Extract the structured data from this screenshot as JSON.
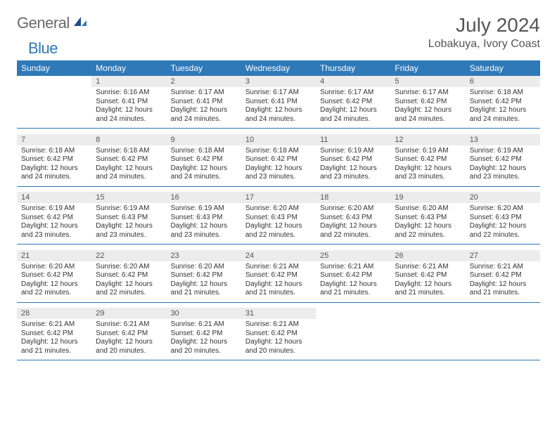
{
  "brand": {
    "part1": "General",
    "part2": "Blue"
  },
  "title": "July 2024",
  "location": "Lobakuya, Ivory Coast",
  "colors": {
    "accent": "#2f79b9",
    "header_text": "#ffffff",
    "daynum_bg": "#ececec",
    "text": "#333333",
    "title": "#555555"
  },
  "weekdays": [
    "Sunday",
    "Monday",
    "Tuesday",
    "Wednesday",
    "Thursday",
    "Friday",
    "Saturday"
  ],
  "weeks": [
    [
      null,
      {
        "n": "1",
        "sr": "Sunrise: 6:16 AM",
        "ss": "Sunset: 6:41 PM",
        "d1": "Daylight: 12 hours",
        "d2": "and 24 minutes."
      },
      {
        "n": "2",
        "sr": "Sunrise: 6:17 AM",
        "ss": "Sunset: 6:41 PM",
        "d1": "Daylight: 12 hours",
        "d2": "and 24 minutes."
      },
      {
        "n": "3",
        "sr": "Sunrise: 6:17 AM",
        "ss": "Sunset: 6:41 PM",
        "d1": "Daylight: 12 hours",
        "d2": "and 24 minutes."
      },
      {
        "n": "4",
        "sr": "Sunrise: 6:17 AM",
        "ss": "Sunset: 6:42 PM",
        "d1": "Daylight: 12 hours",
        "d2": "and 24 minutes."
      },
      {
        "n": "5",
        "sr": "Sunrise: 6:17 AM",
        "ss": "Sunset: 6:42 PM",
        "d1": "Daylight: 12 hours",
        "d2": "and 24 minutes."
      },
      {
        "n": "6",
        "sr": "Sunrise: 6:18 AM",
        "ss": "Sunset: 6:42 PM",
        "d1": "Daylight: 12 hours",
        "d2": "and 24 minutes."
      }
    ],
    [
      {
        "n": "7",
        "sr": "Sunrise: 6:18 AM",
        "ss": "Sunset: 6:42 PM",
        "d1": "Daylight: 12 hours",
        "d2": "and 24 minutes."
      },
      {
        "n": "8",
        "sr": "Sunrise: 6:18 AM",
        "ss": "Sunset: 6:42 PM",
        "d1": "Daylight: 12 hours",
        "d2": "and 24 minutes."
      },
      {
        "n": "9",
        "sr": "Sunrise: 6:18 AM",
        "ss": "Sunset: 6:42 PM",
        "d1": "Daylight: 12 hours",
        "d2": "and 24 minutes."
      },
      {
        "n": "10",
        "sr": "Sunrise: 6:18 AM",
        "ss": "Sunset: 6:42 PM",
        "d1": "Daylight: 12 hours",
        "d2": "and 23 minutes."
      },
      {
        "n": "11",
        "sr": "Sunrise: 6:19 AM",
        "ss": "Sunset: 6:42 PM",
        "d1": "Daylight: 12 hours",
        "d2": "and 23 minutes."
      },
      {
        "n": "12",
        "sr": "Sunrise: 6:19 AM",
        "ss": "Sunset: 6:42 PM",
        "d1": "Daylight: 12 hours",
        "d2": "and 23 minutes."
      },
      {
        "n": "13",
        "sr": "Sunrise: 6:19 AM",
        "ss": "Sunset: 6:42 PM",
        "d1": "Daylight: 12 hours",
        "d2": "and 23 minutes."
      }
    ],
    [
      {
        "n": "14",
        "sr": "Sunrise: 6:19 AM",
        "ss": "Sunset: 6:42 PM",
        "d1": "Daylight: 12 hours",
        "d2": "and 23 minutes."
      },
      {
        "n": "15",
        "sr": "Sunrise: 6:19 AM",
        "ss": "Sunset: 6:43 PM",
        "d1": "Daylight: 12 hours",
        "d2": "and 23 minutes."
      },
      {
        "n": "16",
        "sr": "Sunrise: 6:19 AM",
        "ss": "Sunset: 6:43 PM",
        "d1": "Daylight: 12 hours",
        "d2": "and 23 minutes."
      },
      {
        "n": "17",
        "sr": "Sunrise: 6:20 AM",
        "ss": "Sunset: 6:43 PM",
        "d1": "Daylight: 12 hours",
        "d2": "and 22 minutes."
      },
      {
        "n": "18",
        "sr": "Sunrise: 6:20 AM",
        "ss": "Sunset: 6:43 PM",
        "d1": "Daylight: 12 hours",
        "d2": "and 22 minutes."
      },
      {
        "n": "19",
        "sr": "Sunrise: 6:20 AM",
        "ss": "Sunset: 6:43 PM",
        "d1": "Daylight: 12 hours",
        "d2": "and 22 minutes."
      },
      {
        "n": "20",
        "sr": "Sunrise: 6:20 AM",
        "ss": "Sunset: 6:43 PM",
        "d1": "Daylight: 12 hours",
        "d2": "and 22 minutes."
      }
    ],
    [
      {
        "n": "21",
        "sr": "Sunrise: 6:20 AM",
        "ss": "Sunset: 6:42 PM",
        "d1": "Daylight: 12 hours",
        "d2": "and 22 minutes."
      },
      {
        "n": "22",
        "sr": "Sunrise: 6:20 AM",
        "ss": "Sunset: 6:42 PM",
        "d1": "Daylight: 12 hours",
        "d2": "and 22 minutes."
      },
      {
        "n": "23",
        "sr": "Sunrise: 6:20 AM",
        "ss": "Sunset: 6:42 PM",
        "d1": "Daylight: 12 hours",
        "d2": "and 21 minutes."
      },
      {
        "n": "24",
        "sr": "Sunrise: 6:21 AM",
        "ss": "Sunset: 6:42 PM",
        "d1": "Daylight: 12 hours",
        "d2": "and 21 minutes."
      },
      {
        "n": "25",
        "sr": "Sunrise: 6:21 AM",
        "ss": "Sunset: 6:42 PM",
        "d1": "Daylight: 12 hours",
        "d2": "and 21 minutes."
      },
      {
        "n": "26",
        "sr": "Sunrise: 6:21 AM",
        "ss": "Sunset: 6:42 PM",
        "d1": "Daylight: 12 hours",
        "d2": "and 21 minutes."
      },
      {
        "n": "27",
        "sr": "Sunrise: 6:21 AM",
        "ss": "Sunset: 6:42 PM",
        "d1": "Daylight: 12 hours",
        "d2": "and 21 minutes."
      }
    ],
    [
      {
        "n": "28",
        "sr": "Sunrise: 6:21 AM",
        "ss": "Sunset: 6:42 PM",
        "d1": "Daylight: 12 hours",
        "d2": "and 21 minutes."
      },
      {
        "n": "29",
        "sr": "Sunrise: 6:21 AM",
        "ss": "Sunset: 6:42 PM",
        "d1": "Daylight: 12 hours",
        "d2": "and 20 minutes."
      },
      {
        "n": "30",
        "sr": "Sunrise: 6:21 AM",
        "ss": "Sunset: 6:42 PM",
        "d1": "Daylight: 12 hours",
        "d2": "and 20 minutes."
      },
      {
        "n": "31",
        "sr": "Sunrise: 6:21 AM",
        "ss": "Sunset: 6:42 PM",
        "d1": "Daylight: 12 hours",
        "d2": "and 20 minutes."
      },
      null,
      null,
      null
    ]
  ]
}
